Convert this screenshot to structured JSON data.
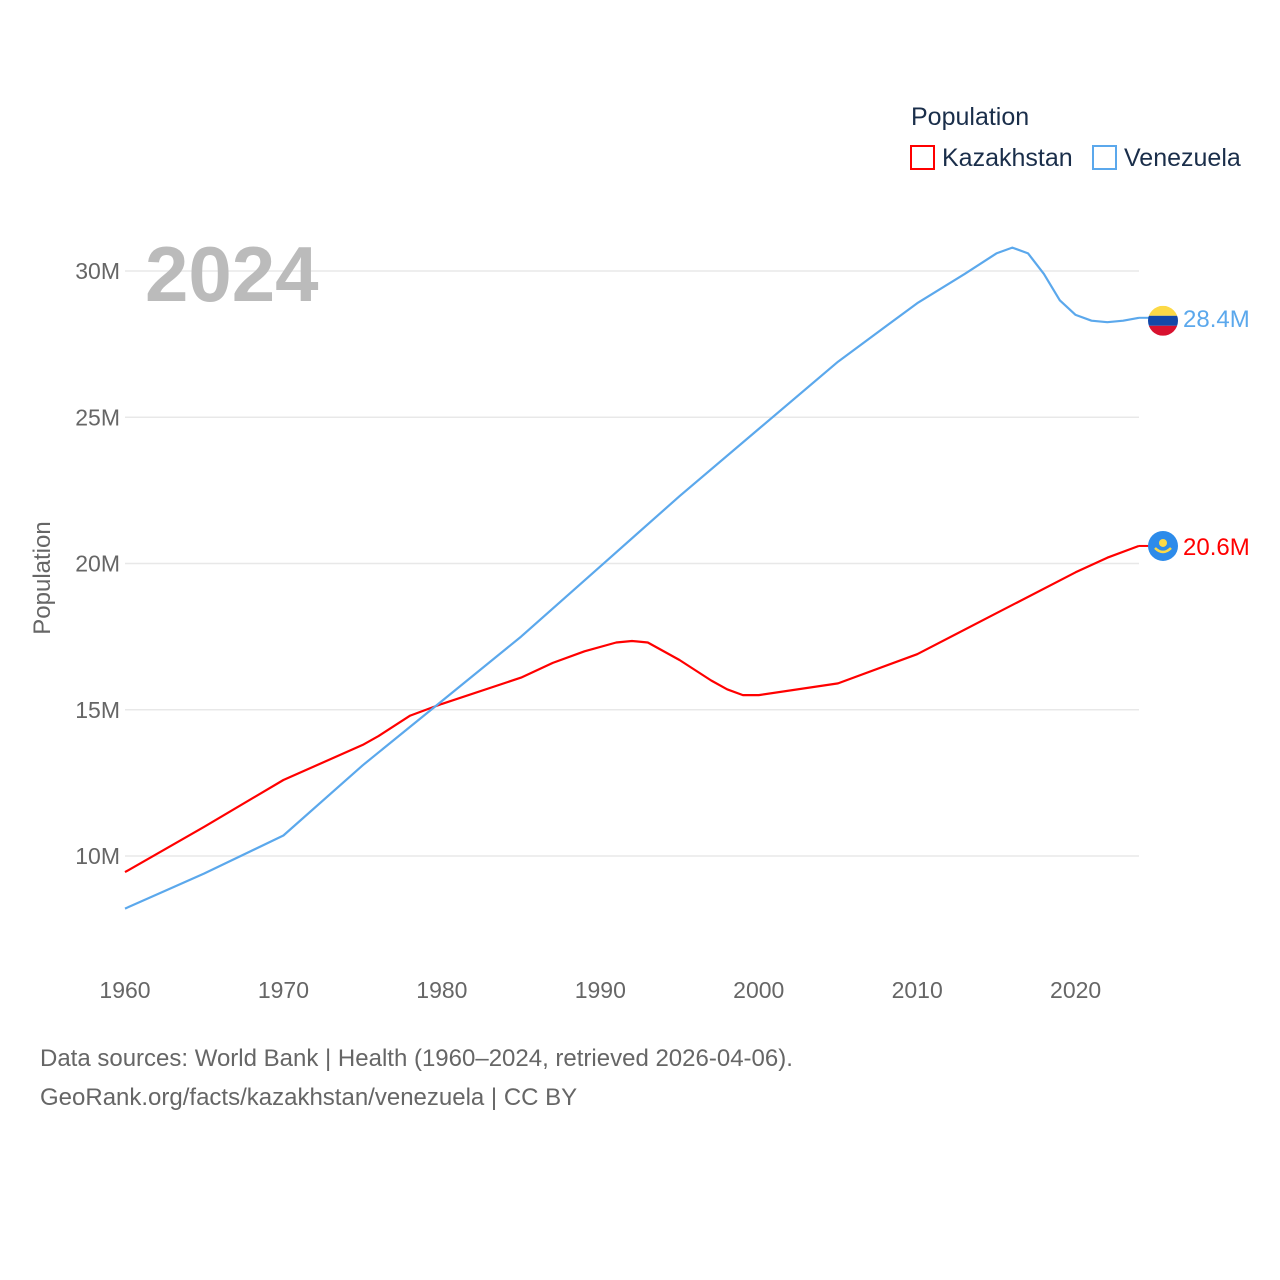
{
  "chart_data": {
    "type": "line",
    "title": "2024",
    "ylabel": "Population",
    "xlabel": "",
    "xlim": [
      1960,
      2024
    ],
    "ylim": [
      7,
      32
    ],
    "yticks": [
      10,
      15,
      20,
      25,
      30
    ],
    "ytick_labels": [
      "10M",
      "15M",
      "20M",
      "25M",
      "30M"
    ],
    "xticks": [
      1960,
      1970,
      1980,
      1990,
      2000,
      2010,
      2020
    ],
    "xtick_labels": [
      "1960",
      "1970",
      "1980",
      "1990",
      "2000",
      "2010",
      "2020"
    ],
    "grid": true,
    "legend": {
      "title": "Population",
      "placement": "top-right"
    },
    "series": [
      {
        "name": "Kazakhstan",
        "color": "#ff0000",
        "end_label": "20.6M",
        "flag": "kazakhstan-flag",
        "points": [
          [
            1960,
            9.45
          ],
          [
            1965,
            11.0
          ],
          [
            1970,
            12.6
          ],
          [
            1975,
            13.8
          ],
          [
            1976,
            14.1
          ],
          [
            1978,
            14.8
          ],
          [
            1980,
            15.2
          ],
          [
            1985,
            16.1
          ],
          [
            1987,
            16.6
          ],
          [
            1989,
            17.0
          ],
          [
            1991,
            17.3
          ],
          [
            1992,
            17.35
          ],
          [
            1993,
            17.3
          ],
          [
            1995,
            16.7
          ],
          [
            1997,
            16.0
          ],
          [
            1998,
            15.7
          ],
          [
            1999,
            15.5
          ],
          [
            2000,
            15.5
          ],
          [
            2005,
            15.9
          ],
          [
            2010,
            16.9
          ],
          [
            2015,
            18.3
          ],
          [
            2020,
            19.7
          ],
          [
            2022,
            20.2
          ],
          [
            2024,
            20.6
          ]
        ]
      },
      {
        "name": "Venezuela",
        "color": "#5ba8ec",
        "end_label": "28.4M",
        "flag": "venezuela-flag",
        "points": [
          [
            1960,
            8.2
          ],
          [
            1965,
            9.4
          ],
          [
            1970,
            10.7
          ],
          [
            1975,
            13.1
          ],
          [
            1980,
            15.3
          ],
          [
            1985,
            17.5
          ],
          [
            1990,
            19.9
          ],
          [
            1995,
            22.3
          ],
          [
            2000,
            24.6
          ],
          [
            2005,
            26.9
          ],
          [
            2010,
            28.9
          ],
          [
            2013,
            29.9
          ],
          [
            2015,
            30.6
          ],
          [
            2016,
            30.8
          ],
          [
            2017,
            30.6
          ],
          [
            2018,
            29.9
          ],
          [
            2019,
            29.0
          ],
          [
            2020,
            28.5
          ],
          [
            2021,
            28.3
          ],
          [
            2022,
            28.25
          ],
          [
            2023,
            28.3
          ],
          [
            2024,
            28.4
          ]
        ]
      }
    ]
  },
  "footer": {
    "line1": "Data sources: World Bank | Health (1960–2024, retrieved 2026-04-06).",
    "line2": "GeoRank.org/facts/kazakhstan/venezuela | CC BY"
  }
}
